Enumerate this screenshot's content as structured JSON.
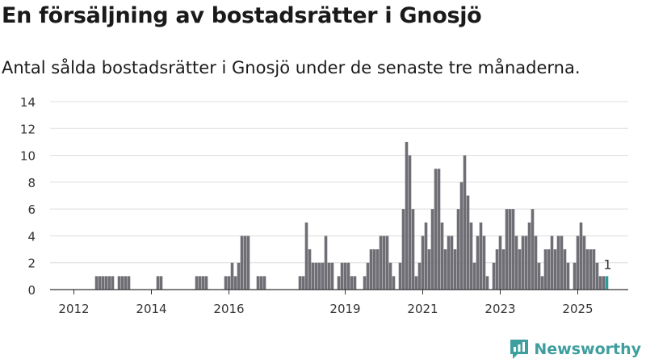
{
  "header": {
    "title": "En försäljning av bostadsrätter i Gnosjö",
    "subtitle": "Antal sålda bostadsrätter i Gnosjö under de senaste tre månaderna."
  },
  "brand": {
    "name": "Newsworthy",
    "color": "#3f9e9e"
  },
  "colors": {
    "bar": "#6f6e75",
    "highlight": "#2a9d9a",
    "grid": "#dcdcdc",
    "axis": "#333333"
  },
  "chart_data": {
    "type": "bar",
    "x_start": "2011-07",
    "x_step": "1 month",
    "ylim": [
      0,
      14
    ],
    "y_ticks": [
      0,
      2,
      4,
      6,
      8,
      10,
      12,
      14
    ],
    "x_ticks": [
      "2012",
      "2014",
      "2016",
      "2019",
      "2021",
      "2023",
      "2025"
    ],
    "grid": true,
    "legend": "none",
    "annotation": {
      "label": "1",
      "target": "last"
    },
    "values": [
      0,
      0,
      0,
      0,
      0,
      0,
      0,
      0,
      0,
      0,
      0,
      0,
      0,
      1,
      1,
      1,
      1,
      1,
      1,
      0,
      1,
      1,
      1,
      1,
      0,
      0,
      0,
      0,
      0,
      0,
      0,
      0,
      1,
      1,
      0,
      0,
      0,
      0,
      0,
      0,
      0,
      0,
      0,
      0,
      1,
      1,
      1,
      1,
      0,
      0,
      0,
      0,
      0,
      1,
      1,
      2,
      1,
      2,
      4,
      4,
      4,
      0,
      0,
      1,
      1,
      1,
      0,
      0,
      0,
      0,
      0,
      0,
      0,
      0,
      0,
      0,
      1,
      1,
      5,
      3,
      2,
      2,
      2,
      2,
      4,
      2,
      2,
      0,
      1,
      2,
      2,
      2,
      1,
      1,
      0,
      0,
      1,
      2,
      3,
      3,
      3,
      4,
      4,
      4,
      2,
      1,
      0,
      2,
      6,
      11,
      10,
      6,
      1,
      2,
      4,
      5,
      3,
      6,
      9,
      9,
      5,
      3,
      4,
      4,
      3,
      6,
      8,
      10,
      7,
      5,
      2,
      4,
      5,
      4,
      1,
      0,
      2,
      3,
      4,
      3,
      6,
      6,
      6,
      4,
      3,
      4,
      4,
      5,
      6,
      4,
      2,
      1,
      3,
      3,
      4,
      3,
      4,
      4,
      3,
      2,
      0,
      2,
      4,
      5,
      4,
      3,
      3,
      3,
      2,
      1,
      1,
      1
    ]
  }
}
